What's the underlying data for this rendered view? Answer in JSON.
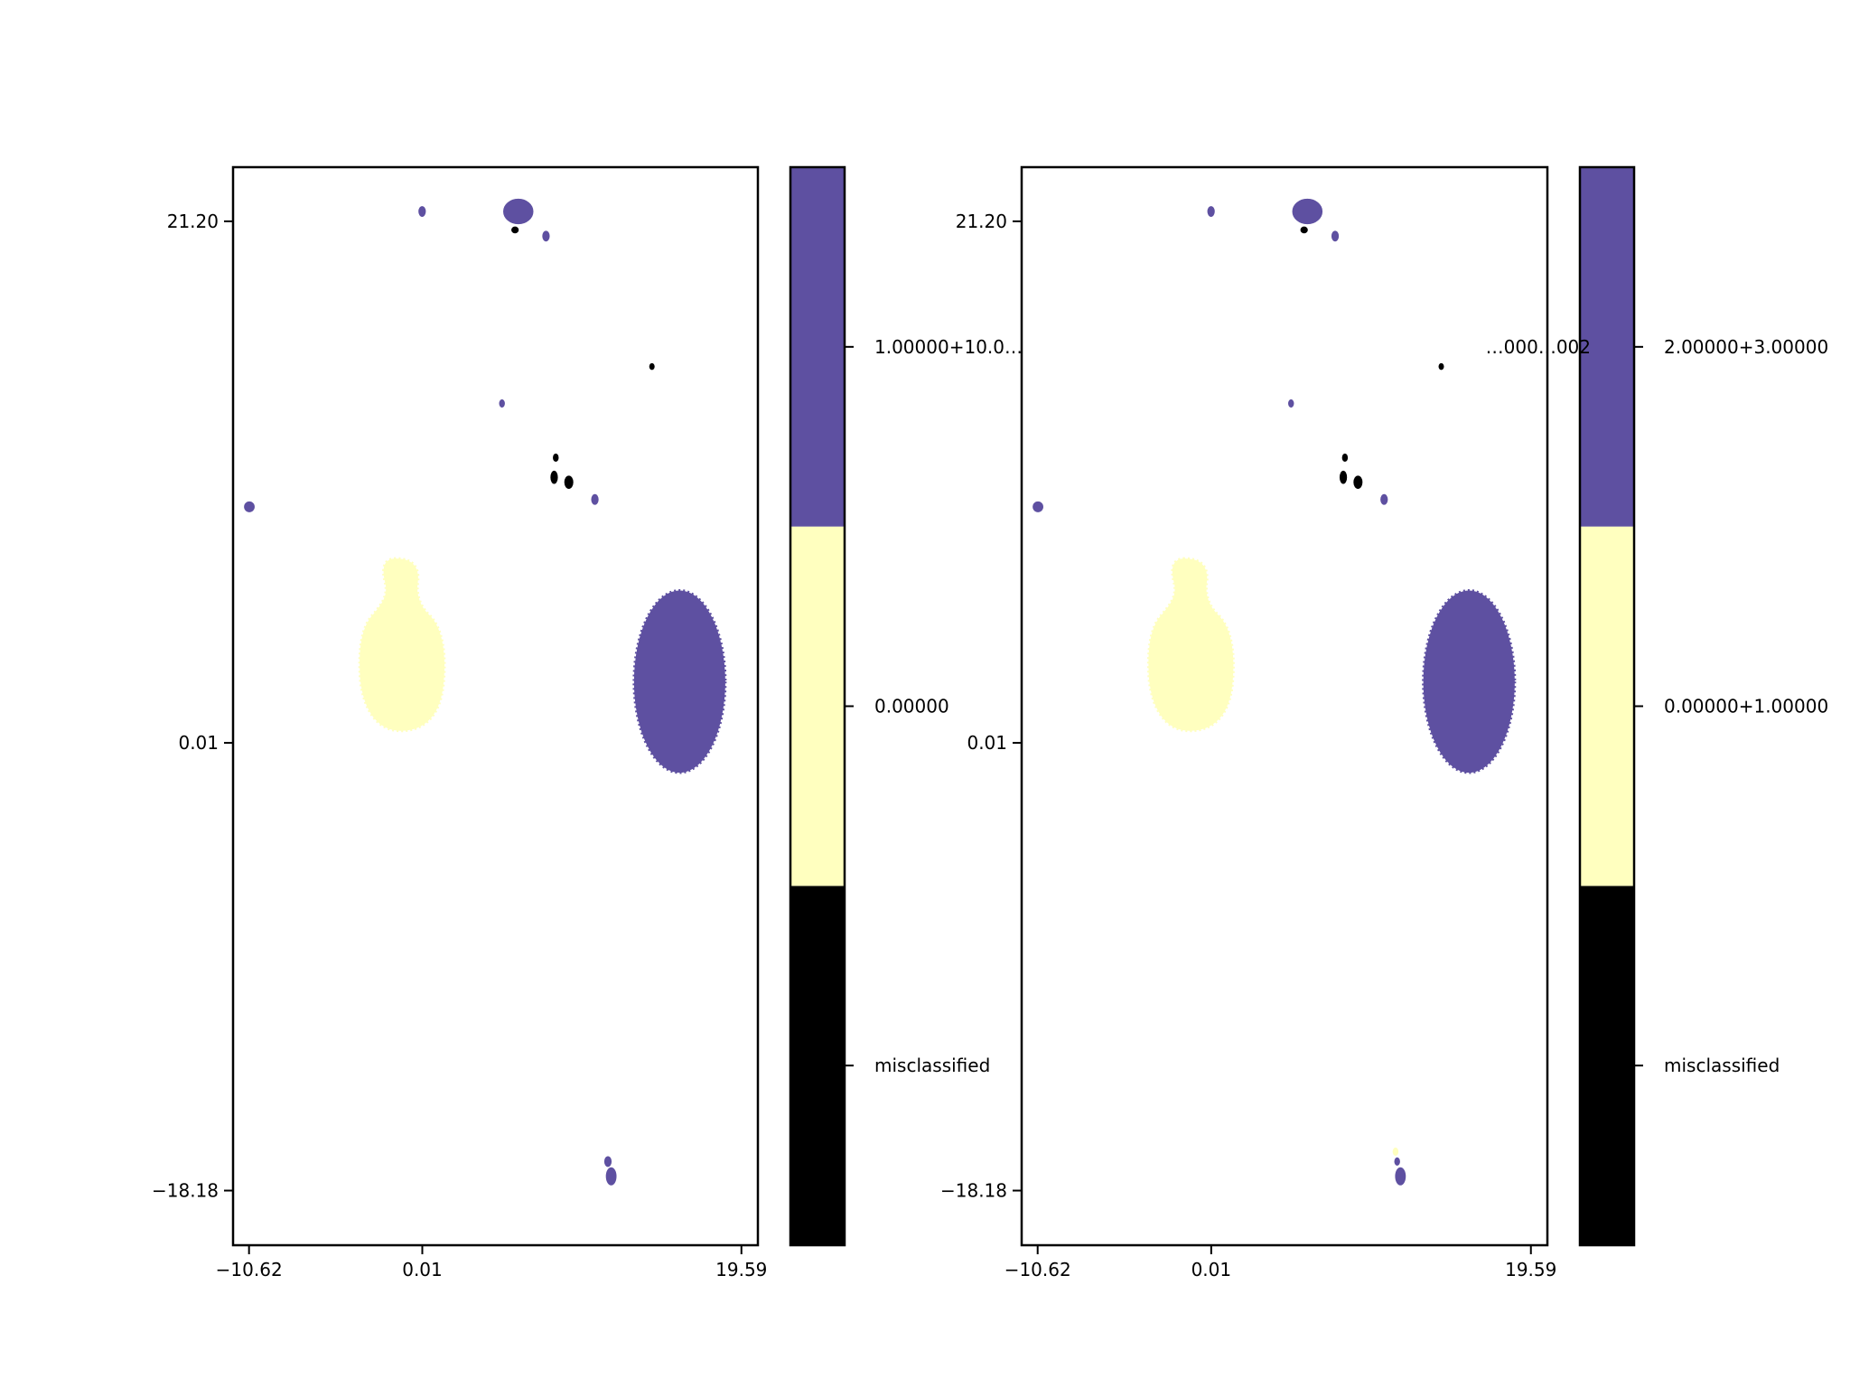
{
  "colors": {
    "purple": "#5e50a1",
    "yellow": "#ffffbf",
    "black": "#000000"
  },
  "chart_data": [
    {
      "type": "scatter",
      "title": "",
      "xlabel": "",
      "ylabel": "",
      "grid": false,
      "xlim": [
        -11.6,
        20.6
      ],
      "ylim": [
        -20.4,
        23.4
      ],
      "xticks": [
        {
          "value": -10.62,
          "label": "−10.62"
        },
        {
          "value": 0.01,
          "label": "0.01"
        },
        {
          "value": 19.59,
          "label": "19.59"
        }
      ],
      "yticks": [
        {
          "value": 21.2,
          "label": "21.20"
        },
        {
          "value": 0.01,
          "label": "0.01"
        },
        {
          "value": -18.18,
          "label": "−18.18"
        }
      ],
      "colorbar": {
        "labels": [
          "misclassified",
          "0.00000",
          "1.00000+10.0…"
        ],
        "colors": [
          "#000000",
          "#ffffbf",
          "#5e50a1"
        ]
      },
      "clusters": [
        {
          "category": "0.00000",
          "shape": "bottle",
          "x_range": [
            -3.8,
            1.4
          ],
          "y_range": [
            0.5,
            7.5
          ]
        },
        {
          "category": "1.00000+10.0…",
          "shape": "ellipse",
          "x": 15.8,
          "y": 2.5,
          "rx": 2.8,
          "ry": 3.7
        },
        {
          "category": "1.00000+10.0…",
          "shape": "blob",
          "x": 5.9,
          "y": 21.6,
          "rx": 0.9,
          "ry": 0.5
        },
        {
          "category": "1.00000+10.0…",
          "shape": "blob",
          "x": 0.0,
          "y": 21.6,
          "rx": 0.2,
          "ry": 0.2
        },
        {
          "category": "1.00000+10.0…",
          "shape": "blob",
          "x": -10.6,
          "y": 9.6,
          "rx": 0.3,
          "ry": 0.2
        },
        {
          "category": "1.00000+10.0…",
          "shape": "blob",
          "x": 4.9,
          "y": 13.8,
          "rx": 0.15,
          "ry": 0.15
        },
        {
          "category": "1.00000+10.0…",
          "shape": "blob",
          "x": 7.6,
          "y": 20.6,
          "rx": 0.2,
          "ry": 0.2
        },
        {
          "category": "1.00000+10.0…",
          "shape": "blob",
          "x": 10.6,
          "y": 9.9,
          "rx": 0.2,
          "ry": 0.2
        },
        {
          "category": "1.00000+10.0…",
          "shape": "blob",
          "x": 11.6,
          "y": -17.6,
          "rx": 0.3,
          "ry": 0.35
        },
        {
          "category": "1.00000+10.0…",
          "shape": "blob",
          "x": 11.4,
          "y": -17.0,
          "rx": 0.2,
          "ry": 0.2
        },
        {
          "category": "misclassified",
          "shape": "blob",
          "x": 5.7,
          "y": 20.85,
          "rx": 0.2,
          "ry": 0.12
        },
        {
          "category": "misclassified",
          "shape": "blob",
          "x": 14.1,
          "y": 15.3,
          "rx": 0.12,
          "ry": 0.12
        },
        {
          "category": "misclassified",
          "shape": "blob",
          "x": 8.2,
          "y": 11.6,
          "rx": 0.15,
          "ry": 0.15
        },
        {
          "category": "misclassified",
          "shape": "blob",
          "x": 8.1,
          "y": 10.8,
          "rx": 0.2,
          "ry": 0.25
        },
        {
          "category": "misclassified",
          "shape": "blob",
          "x": 9.0,
          "y": 10.6,
          "rx": 0.25,
          "ry": 0.25
        }
      ]
    },
    {
      "type": "scatter",
      "title": "",
      "xlabel": "",
      "ylabel": "",
      "grid": false,
      "xlim": [
        -11.6,
        20.6
      ],
      "ylim": [
        -20.4,
        23.4
      ],
      "xticks": [
        {
          "value": -10.62,
          "label": "−10.62"
        },
        {
          "value": 0.01,
          "label": "0.01"
        },
        {
          "value": 19.59,
          "label": "19.59"
        }
      ],
      "yticks": [
        {
          "value": 21.2,
          "label": "21.20"
        },
        {
          "value": 0.01,
          "label": "0.01"
        },
        {
          "value": -18.18,
          "label": "−18.18"
        }
      ],
      "colorbar": {
        "labels": [
          "misclassified",
          "0.00000+1.00000",
          "2.00000+3.00000"
        ],
        "colors": [
          "#000000",
          "#ffffbf",
          "#5e50a1"
        ],
        "overlap_label": "…000…002"
      },
      "clusters": [
        {
          "category": "0.00000+1.00000",
          "shape": "bottle",
          "x_range": [
            -3.8,
            1.4
          ],
          "y_range": [
            0.5,
            7.5
          ]
        },
        {
          "category": "2.00000+3.00000",
          "shape": "ellipse",
          "x": 15.8,
          "y": 2.5,
          "rx": 2.8,
          "ry": 3.7
        },
        {
          "category": "2.00000+3.00000",
          "shape": "blob",
          "x": 5.9,
          "y": 21.6,
          "rx": 0.9,
          "ry": 0.5
        },
        {
          "category": "2.00000+3.00000",
          "shape": "blob",
          "x": 0.0,
          "y": 21.6,
          "rx": 0.2,
          "ry": 0.2
        },
        {
          "category": "2.00000+3.00000",
          "shape": "blob",
          "x": -10.6,
          "y": 9.6,
          "rx": 0.3,
          "ry": 0.2
        },
        {
          "category": "2.00000+3.00000",
          "shape": "blob",
          "x": 4.9,
          "y": 13.8,
          "rx": 0.15,
          "ry": 0.15
        },
        {
          "category": "2.00000+3.00000",
          "shape": "blob",
          "x": 7.6,
          "y": 20.6,
          "rx": 0.2,
          "ry": 0.2
        },
        {
          "category": "2.00000+3.00000",
          "shape": "blob",
          "x": 10.6,
          "y": 9.9,
          "rx": 0.2,
          "ry": 0.2
        },
        {
          "category": "2.00000+3.00000",
          "shape": "blob",
          "x": 11.6,
          "y": -17.6,
          "rx": 0.3,
          "ry": 0.35
        },
        {
          "category": "2.00000+3.00000",
          "shape": "blob",
          "x": 11.4,
          "y": -17.0,
          "rx": 0.15,
          "ry": 0.15
        },
        {
          "category": "0.00000+1.00000",
          "shape": "blob",
          "x": 11.3,
          "y": -16.6,
          "rx": 0.15,
          "ry": 0.15
        },
        {
          "category": "misclassified",
          "shape": "blob",
          "x": 5.7,
          "y": 20.85,
          "rx": 0.2,
          "ry": 0.12
        },
        {
          "category": "misclassified",
          "shape": "blob",
          "x": 14.1,
          "y": 15.3,
          "rx": 0.12,
          "ry": 0.12
        },
        {
          "category": "misclassified",
          "shape": "blob",
          "x": 8.2,
          "y": 11.6,
          "rx": 0.15,
          "ry": 0.15
        },
        {
          "category": "misclassified",
          "shape": "blob",
          "x": 8.1,
          "y": 10.8,
          "rx": 0.2,
          "ry": 0.25
        },
        {
          "category": "misclassified",
          "shape": "blob",
          "x": 9.0,
          "y": 10.6,
          "rx": 0.25,
          "ry": 0.25
        }
      ]
    }
  ]
}
